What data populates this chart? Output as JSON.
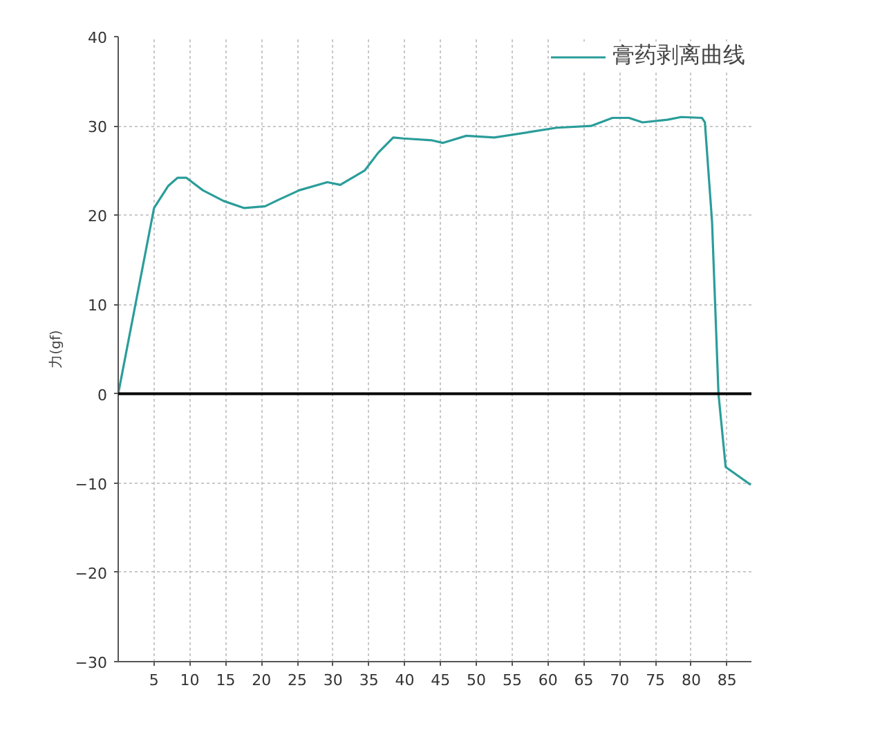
{
  "chart_data": {
    "type": "line",
    "ylabel": "力(gf)",
    "xlim": [
      0,
      88.4
    ],
    "ylim": [
      -30,
      40
    ],
    "xticks": [
      5,
      10,
      15,
      20,
      25,
      30,
      35,
      40,
      45,
      50,
      55,
      60,
      65,
      70,
      75,
      80,
      85
    ],
    "yticks": [
      -30,
      -20,
      -10,
      0,
      10,
      20,
      30,
      40
    ],
    "grid": true,
    "legend": "top right",
    "marker": "none",
    "line_style": "solid",
    "ref_lines": [
      {
        "axis": "y",
        "value": 0,
        "color": "#000000"
      }
    ],
    "series": [
      {
        "name": "膏药剥离曲线",
        "color": "#2a9d9a",
        "x": [
          0,
          5,
          7,
          8.3,
          9.5,
          11.8,
          14.7,
          17.6,
          20.5,
          22.3,
          25.3,
          29.2,
          31,
          34.4,
          36.3,
          38.4,
          39.8,
          43.7,
          45.3,
          48.6,
          52.5,
          57.3,
          61.2,
          66,
          69,
          71.3,
          73.2,
          76.7,
          78.6,
          81.5,
          81.9,
          82.9,
          83.8,
          84.8,
          88.3
        ],
        "values": [
          0,
          20.8,
          23.3,
          24.2,
          24.2,
          22.8,
          21.6,
          20.8,
          21,
          21.7,
          22.8,
          23.7,
          23.4,
          25,
          27,
          28.7,
          28.6,
          28.4,
          28.1,
          28.9,
          28.7,
          29.3,
          29.8,
          30,
          30.9,
          30.9,
          30.4,
          30.7,
          31,
          30.9,
          30.4,
          19.3,
          0,
          -8.2,
          -10.2
        ]
      }
    ]
  }
}
